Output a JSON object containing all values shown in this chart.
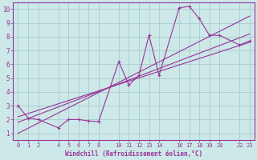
{
  "xlabel": "Windchill (Refroidissement éolien,°C)",
  "background_color": "#cce8e8",
  "grid_color": "#aacccc",
  "line_color": "#993399",
  "x_ticks": [
    0,
    1,
    2,
    4,
    5,
    6,
    7,
    8,
    10,
    11,
    12,
    13,
    14,
    16,
    17,
    18,
    19,
    20,
    22,
    23
  ],
  "y_ticks": [
    1,
    2,
    3,
    4,
    5,
    6,
    7,
    8,
    9,
    10
  ],
  "xlim": [
    -0.5,
    23.5
  ],
  "ylim": [
    0.5,
    10.5
  ],
  "series1_x": [
    0,
    1,
    2,
    4,
    5,
    6,
    7,
    8,
    10,
    11,
    12,
    13,
    14,
    16,
    17,
    18,
    19,
    20,
    22,
    23
  ],
  "series1_y": [
    3.0,
    2.1,
    2.0,
    1.4,
    2.0,
    2.0,
    1.9,
    1.85,
    6.2,
    4.5,
    5.2,
    8.1,
    5.2,
    10.1,
    10.2,
    9.3,
    8.1,
    8.1,
    7.4,
    7.7
  ],
  "series2_x": [
    0,
    23
  ],
  "series2_y": [
    1.8,
    8.2
  ],
  "series3_x": [
    0,
    23
  ],
  "series3_y": [
    2.2,
    7.6
  ],
  "series4_x": [
    0,
    23
  ],
  "series4_y": [
    1.0,
    9.5
  ]
}
